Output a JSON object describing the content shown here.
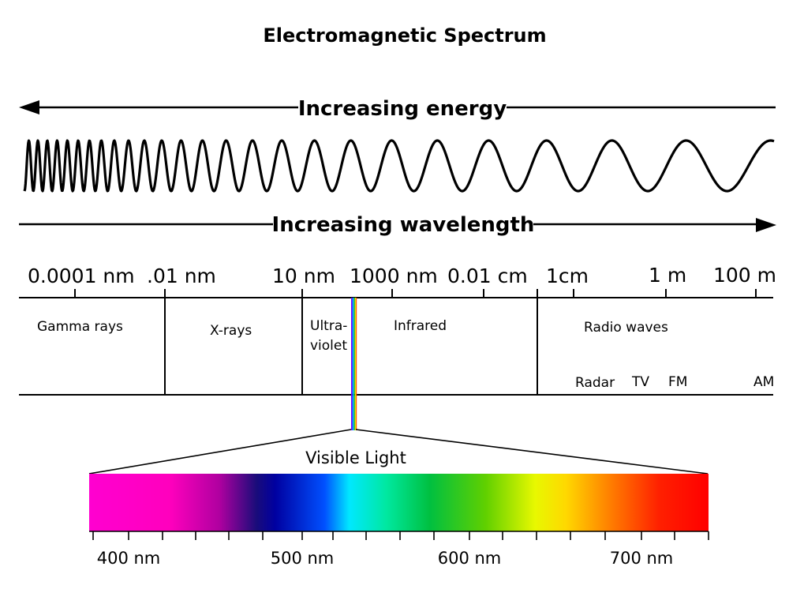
{
  "title": "Electromagnetic Spectrum",
  "energy_label": "Increasing energy",
  "wavelength_label": "Increasing wavelength",
  "wavelength_scale": [
    "0.0001 nm",
    ".01 nm",
    "10 nm",
    "1000 nm",
    "0.01 cm",
    "1cm",
    "1 m",
    "100 m"
  ],
  "bands": {
    "gamma": "Gamma rays",
    "xrays": "X-rays",
    "uv_line1": "Ultra-",
    "uv_line2": "violet",
    "infrared": "Infrared",
    "radio": "Radio waves"
  },
  "radio_subbands": [
    "Radar",
    "TV",
    "FM",
    "AM"
  ],
  "visible": {
    "label": "Visible Light",
    "ticks": [
      "400 nm",
      "500 nm",
      "600 nm",
      "700 nm"
    ],
    "colors": [
      "#ff00d0",
      "#ff00bd",
      "#b000a0",
      "#1a0c7a",
      "#0000a0",
      "#0050ff",
      "#00e8ff",
      "#00e8a0",
      "#00c040",
      "#60d000",
      "#e8f800",
      "#ffd800",
      "#ff8000",
      "#ff2000",
      "#ff0000"
    ]
  }
}
